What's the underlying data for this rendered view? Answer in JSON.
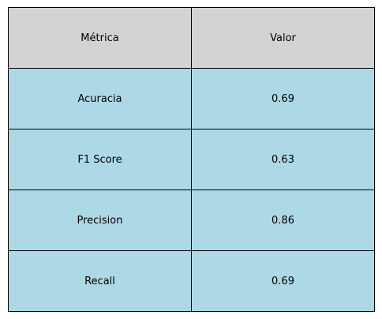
{
  "chart_data": {
    "type": "table",
    "columns": [
      "Métrica",
      "Valor"
    ],
    "rows": [
      [
        "Acuracia",
        "0.69"
      ],
      [
        "F1 Score",
        "0.63"
      ],
      [
        "Precision",
        "0.86"
      ],
      [
        "Recall",
        "0.69"
      ]
    ],
    "header_color": "#d3d3d3",
    "cell_color": "#add8e6",
    "border_color": "#000000"
  }
}
